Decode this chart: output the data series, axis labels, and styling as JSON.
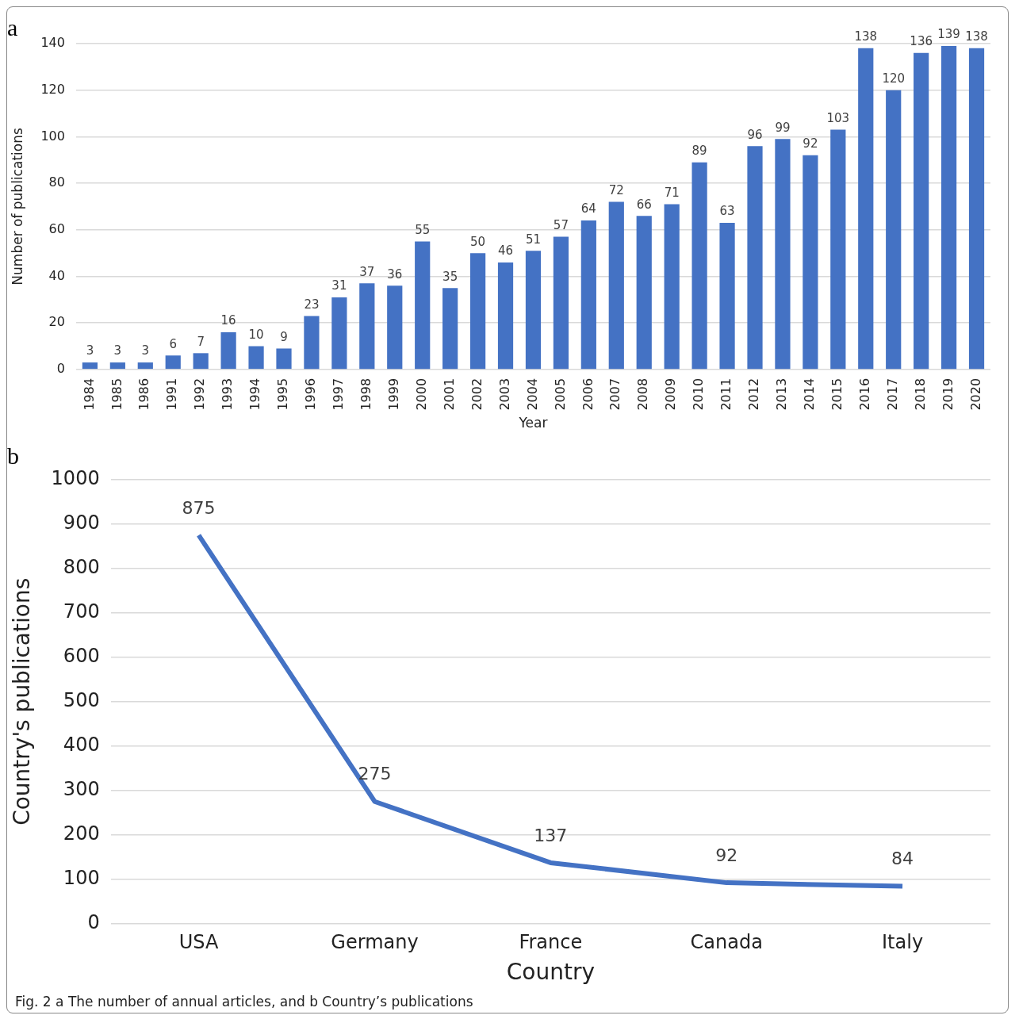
{
  "chart_data": [
    {
      "type": "bar",
      "title": "a",
      "xlabel": "Year",
      "ylabel": "Number of publications",
      "categories": [
        "1984",
        "1985",
        "1986",
        "1991",
        "1992",
        "1993",
        "1994",
        "1995",
        "1996",
        "1997",
        "1998",
        "1999",
        "2000",
        "2001",
        "2002",
        "2003",
        "2004",
        "2005",
        "2006",
        "2007",
        "2008",
        "2009",
        "2010",
        "2011",
        "2012",
        "2013",
        "2014",
        "2015",
        "2016",
        "2017",
        "2018",
        "2019",
        "2020"
      ],
      "values": [
        3,
        3,
        3,
        6,
        7,
        16,
        10,
        9,
        23,
        31,
        37,
        36,
        55,
        35,
        50,
        46,
        51,
        57,
        64,
        72,
        66,
        71,
        89,
        63,
        96,
        99,
        92,
        103,
        138,
        120,
        136,
        139,
        138
      ],
      "color": "#4472c4",
      "ylim": [
        0,
        140
      ],
      "yticks": [
        0,
        20,
        40,
        60,
        80,
        100,
        120,
        140
      ],
      "grid": "y",
      "data_labels": true
    },
    {
      "type": "line",
      "title": "b",
      "xlabel": "Country",
      "ylabel": "Country's publications",
      "categories": [
        "USA",
        "Germany",
        "France",
        "Canada",
        "Italy"
      ],
      "values": [
        875,
        275,
        137,
        92,
        84
      ],
      "color": "#4472c4",
      "ylim": [
        0,
        1000
      ],
      "yticks": [
        0,
        100,
        200,
        300,
        400,
        500,
        600,
        700,
        800,
        900,
        1000
      ],
      "grid": "y",
      "data_labels": true,
      "marker": "none",
      "annotations": [
        "Fig. 2  a The number of annual articles, and b Country’s publications"
      ]
    }
  ]
}
